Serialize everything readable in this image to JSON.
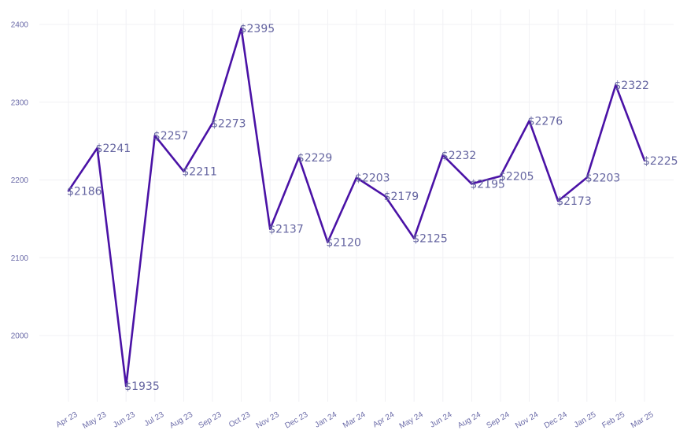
{
  "chart_data": {
    "type": "line",
    "title": "",
    "xlabel": "",
    "ylabel": "",
    "categories": [
      "Apr 23",
      "May 23",
      "Jun 23",
      "Jul 23",
      "Aug 23",
      "Sep 23",
      "Oct 23",
      "Nov 23",
      "Dec 23",
      "Jan 24",
      "Mar 24",
      "Apr 24",
      "May 24",
      "Jun 24",
      "Aug 24",
      "Sep 24",
      "Nov 24",
      "Dec 24",
      "Jan 25",
      "Feb 25",
      "Mar 25"
    ],
    "series": [
      {
        "values": [
          2186,
          2241,
          1935,
          2257,
          2211,
          2273,
          2395,
          2137,
          2229,
          2120,
          2203,
          2179,
          2125,
          2232,
          2195,
          2205,
          2276,
          2173,
          2203,
          2322,
          2225
        ],
        "color": "#4a12a6"
      }
    ],
    "data_labels": [
      "$2186",
      "$2241",
      "$1935",
      "$2257",
      "$2211",
      "$2273",
      "$2395",
      "$2137",
      "$2229",
      "$2120",
      "$2203",
      "$2179",
      "$2125",
      "$2232",
      "$2195",
      "$2205",
      "$2276",
      "$2173",
      "$2203",
      "$2322",
      "$2225"
    ],
    "yticks": [
      "2000",
      "2100",
      "2200",
      "2300",
      "2400"
    ],
    "ylim": [
      1918,
      2418
    ],
    "grid": true,
    "legend": "none"
  }
}
